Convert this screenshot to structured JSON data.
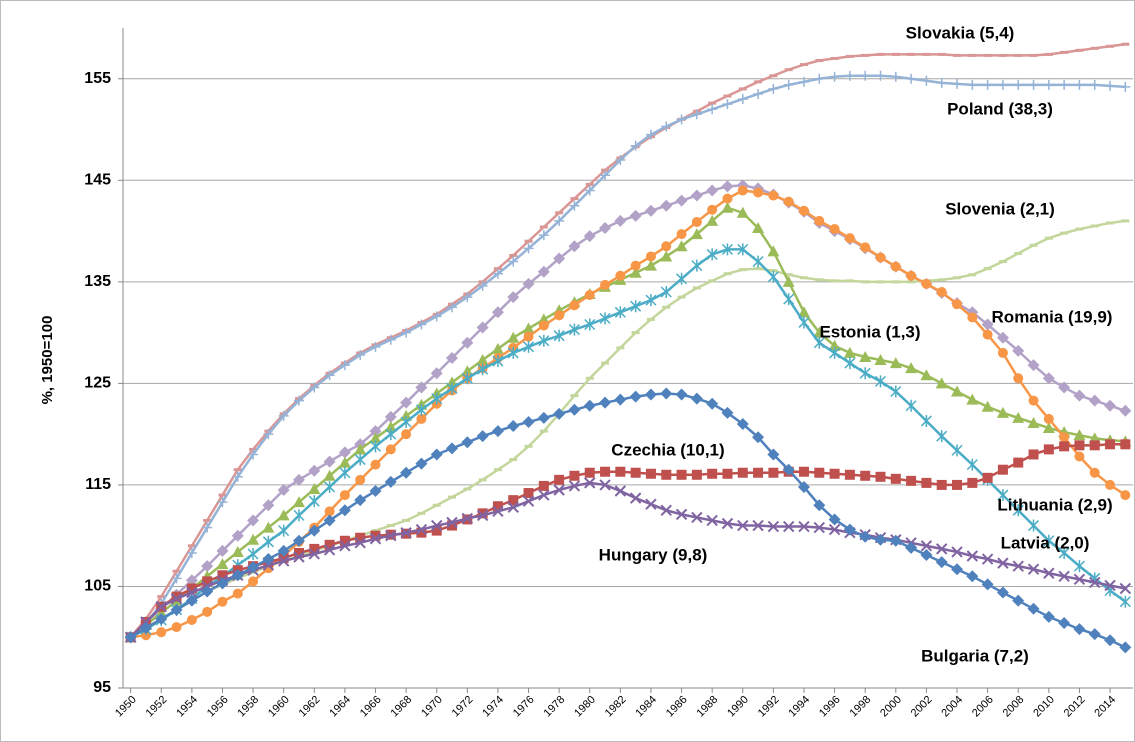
{
  "chart_data": {
    "type": "line",
    "y_label": "%, 1950=100",
    "x": [
      1950,
      1951,
      1952,
      1953,
      1954,
      1955,
      1956,
      1957,
      1958,
      1959,
      1960,
      1961,
      1962,
      1963,
      1964,
      1965,
      1966,
      1967,
      1968,
      1969,
      1970,
      1971,
      1972,
      1973,
      1974,
      1975,
      1976,
      1977,
      1978,
      1979,
      1980,
      1981,
      1982,
      1983,
      1984,
      1985,
      1986,
      1987,
      1988,
      1989,
      1990,
      1991,
      1992,
      1993,
      1994,
      1995,
      1996,
      1997,
      1998,
      1999,
      2000,
      2001,
      2002,
      2003,
      2004,
      2005,
      2006,
      2007,
      2008,
      2009,
      2010,
      2011,
      2012,
      2013,
      2014,
      2015
    ],
    "xlim": [
      1949.5,
      2015.5
    ],
    "xticks": [
      1950,
      1952,
      1954,
      1956,
      1958,
      1960,
      1962,
      1964,
      1966,
      1968,
      1970,
      1972,
      1974,
      1976,
      1978,
      1980,
      1982,
      1984,
      1986,
      1988,
      1990,
      1992,
      1994,
      1996,
      1998,
      2000,
      2002,
      2004,
      2006,
      2008,
      2010,
      2012,
      2014
    ],
    "ylim": [
      95,
      160
    ],
    "yticks": [
      95,
      105,
      115,
      125,
      135,
      145,
      155
    ],
    "grid": true,
    "series": [
      {
        "name": "Slovakia (5,4)",
        "color": "#d99694",
        "marker": "dash",
        "values": [
          100,
          101.8,
          104,
          106.5,
          109,
          111.5,
          114,
          116.5,
          118.5,
          120.3,
          122,
          123.5,
          124.8,
          126,
          127,
          128,
          128.8,
          129.5,
          130.2,
          131,
          131.8,
          132.8,
          133.8,
          135,
          136.3,
          137.6,
          139,
          140.4,
          141.8,
          143.2,
          144.6,
          146,
          147.2,
          148.3,
          149.3,
          150.2,
          151,
          151.8,
          152.6,
          153.3,
          154,
          154.7,
          155.3,
          155.9,
          156.4,
          156.8,
          157,
          157.2,
          157.3,
          157.4,
          157.4,
          157.4,
          157.4,
          157.4,
          157.3,
          157.3,
          157.3,
          157.3,
          157.3,
          157.3,
          157.4,
          157.6,
          157.8,
          158,
          158.2,
          158.4
        ]
      },
      {
        "name": "Poland (38,3)",
        "color": "#95b3d7",
        "marker": "plus",
        "values": [
          100,
          101.3,
          103.3,
          105.8,
          108.3,
          110.8,
          113.3,
          115.8,
          118,
          120,
          121.8,
          123.3,
          124.6,
          125.8,
          126.8,
          127.8,
          128.6,
          129.3,
          130,
          130.8,
          131.6,
          132.5,
          133.5,
          134.6,
          135.8,
          137,
          138.3,
          139.6,
          141,
          142.5,
          144,
          145.5,
          147,
          148.4,
          149.5,
          150.3,
          151,
          151.5,
          152,
          152.5,
          153,
          153.5,
          154,
          154.4,
          154.7,
          155,
          155.2,
          155.3,
          155.3,
          155.3,
          155.2,
          155,
          154.8,
          154.6,
          154.5,
          154.4,
          154.4,
          154.4,
          154.4,
          154.4,
          154.4,
          154.4,
          154.4,
          154.4,
          154.3,
          154.2
        ]
      },
      {
        "name": "Slovenia (2,1)",
        "color": "#c3d69b",
        "marker": "dash",
        "values": [
          100,
          100.9,
          101.8,
          102.7,
          103.6,
          104.5,
          105.2,
          105.8,
          106.4,
          107,
          107.5,
          108,
          108.5,
          109,
          109.5,
          110,
          110.5,
          111,
          111.5,
          112.2,
          113,
          113.8,
          114.6,
          115.5,
          116.5,
          117.5,
          118.8,
          120.3,
          122,
          123.8,
          125.5,
          127,
          128.5,
          130,
          131.3,
          132.5,
          133.5,
          134.4,
          135.1,
          135.8,
          136.2,
          136.3,
          136.1,
          135.7,
          135.4,
          135.2,
          135.1,
          135.1,
          135,
          135,
          135,
          135,
          135.1,
          135.2,
          135.4,
          135.7,
          136.3,
          137,
          137.8,
          138.6,
          139.3,
          139.8,
          140.2,
          140.5,
          140.8,
          141
        ]
      },
      {
        "name": "Romania (19,9)",
        "color": "#b3a2c7",
        "marker": "diamond",
        "values": [
          100,
          101.5,
          102.8,
          104.2,
          105.6,
          107,
          108.5,
          110,
          111.5,
          113,
          114.5,
          115.5,
          116.4,
          117.3,
          118.2,
          119,
          120.3,
          121.7,
          123.1,
          124.6,
          126,
          127.5,
          129,
          130.5,
          132,
          133.5,
          134.8,
          136,
          137.3,
          138.5,
          139.5,
          140.3,
          141,
          141.5,
          142,
          142.5,
          143,
          143.5,
          144,
          144.4,
          144.5,
          144.2,
          143.6,
          142.8,
          141.9,
          140.8,
          140,
          139.2,
          138.3,
          137.4,
          136.5,
          135.6,
          134.8,
          133.9,
          132.9,
          132,
          130.8,
          129.5,
          128.2,
          126.8,
          125.5,
          124.6,
          123.8,
          123.3,
          122.8,
          122.3
        ]
      },
      {
        "name": "Estonia (1,3)",
        "color": "#9bbb59",
        "marker": "triangle",
        "values": [
          100,
          101.2,
          102.4,
          103.6,
          104.8,
          106,
          107.2,
          108.4,
          109.6,
          110.8,
          112,
          113.3,
          114.6,
          115.9,
          117.2,
          118.5,
          119.6,
          120.7,
          121.8,
          122.9,
          124,
          125.1,
          126.2,
          127.3,
          128.4,
          129.5,
          130.4,
          131.3,
          132.2,
          133,
          133.8,
          134.5,
          135.2,
          135.9,
          136.6,
          137.5,
          138.5,
          139.7,
          141,
          142.3,
          141.8,
          140.3,
          138,
          135,
          132,
          130,
          128.7,
          128,
          127.6,
          127.3,
          127,
          126.5,
          125.8,
          125,
          124.2,
          123.4,
          122.7,
          122.1,
          121.6,
          121.1,
          120.6,
          120.2,
          119.9,
          119.6,
          119.4,
          119.3
        ]
      },
      {
        "name": "Lithuania (2,9)",
        "color": "#f79646",
        "marker": "circle",
        "values": [
          100,
          100.2,
          100.5,
          101,
          101.7,
          102.5,
          103.5,
          104.3,
          105.5,
          106.8,
          108,
          109.4,
          110.8,
          112.4,
          114,
          115.5,
          117,
          118.5,
          120,
          121.5,
          123,
          124.3,
          125.5,
          126.5,
          127.5,
          128.5,
          129.6,
          130.7,
          131.7,
          132.7,
          133.7,
          134.7,
          135.6,
          136.6,
          137.5,
          138.5,
          139.7,
          140.9,
          142.1,
          143.2,
          144,
          143.8,
          143.5,
          142.9,
          142,
          141,
          140.2,
          139.3,
          138.4,
          137.4,
          136.5,
          135.6,
          134.8,
          134,
          132.8,
          131.5,
          129.8,
          128,
          125.5,
          123.3,
          121.5,
          119.7,
          117.8,
          116.2,
          115,
          114
        ]
      },
      {
        "name": "Latvia (2,0)",
        "color": "#4bacc6",
        "marker": "star",
        "values": [
          100,
          100.8,
          101.7,
          102.7,
          103.8,
          105,
          106,
          107.1,
          108.2,
          109.4,
          110.5,
          112,
          113.4,
          114.8,
          116.2,
          117.5,
          118.8,
          120,
          121.2,
          122.4,
          123.5,
          124.5,
          125.5,
          126.4,
          127.2,
          128,
          128.6,
          129.2,
          129.7,
          130.3,
          130.8,
          131.4,
          132,
          132.6,
          133.2,
          134,
          135.3,
          136.6,
          137.7,
          138.2,
          138.2,
          137,
          135.5,
          133.3,
          131,
          129,
          128,
          127,
          126,
          125.2,
          124.2,
          122.8,
          121.3,
          119.8,
          118.4,
          117,
          115.5,
          114,
          112.5,
          111,
          109.5,
          108.3,
          107,
          105.8,
          104.6,
          103.5
        ]
      },
      {
        "name": "Czechia (10,1)",
        "color": "#c0504d",
        "marker": "square",
        "values": [
          100,
          101.5,
          103,
          104,
          104.8,
          105.5,
          106.1,
          106.6,
          107,
          107.4,
          107.8,
          108.3,
          108.7,
          109.1,
          109.5,
          109.8,
          110,
          110.1,
          110.2,
          110.3,
          110.5,
          111,
          111.6,
          112.2,
          112.9,
          113.5,
          114.2,
          114.9,
          115.5,
          115.9,
          116.2,
          116.3,
          116.3,
          116.2,
          116.1,
          116,
          116,
          116,
          116.1,
          116.1,
          116.2,
          116.2,
          116.2,
          116.3,
          116.3,
          116.2,
          116.1,
          116,
          115.9,
          115.8,
          115.6,
          115.4,
          115.2,
          115,
          115,
          115.2,
          115.7,
          116.5,
          117.2,
          118,
          118.5,
          118.8,
          118.9,
          118.9,
          119,
          119
        ]
      },
      {
        "name": "Hungary (9,8)",
        "color": "#8064a2",
        "marker": "x",
        "values": [
          100,
          101.5,
          103,
          103.8,
          104.4,
          105,
          105.6,
          106.1,
          106.6,
          107.1,
          107.5,
          107.9,
          108.2,
          108.6,
          109,
          109.3,
          109.7,
          110,
          110.3,
          110.6,
          111,
          111.3,
          111.7,
          112,
          112.4,
          112.8,
          113.4,
          114,
          114.5,
          114.9,
          115.2,
          115,
          114.4,
          113.7,
          113.1,
          112.5,
          112.1,
          111.8,
          111.5,
          111.2,
          111,
          111,
          110.9,
          110.9,
          110.9,
          110.8,
          110.6,
          110.3,
          110.1,
          109.8,
          109.6,
          109.3,
          109,
          108.7,
          108.4,
          108,
          107.7,
          107.3,
          107,
          106.7,
          106.3,
          106,
          105.7,
          105.4,
          105.1,
          104.8
        ]
      },
      {
        "name": "Bulgaria (7,2)",
        "color": "#4f81bd",
        "marker": "diamond",
        "values": [
          100,
          100.9,
          101.8,
          102.7,
          103.6,
          104.5,
          105.3,
          106.1,
          106.9,
          107.7,
          108.5,
          109.5,
          110.5,
          111.5,
          112.5,
          113.5,
          114.4,
          115.3,
          116.2,
          117.1,
          118,
          118.6,
          119.2,
          119.8,
          120.3,
          120.8,
          121.2,
          121.6,
          122,
          122.4,
          122.8,
          123.1,
          123.4,
          123.7,
          123.9,
          124,
          123.9,
          123.5,
          123,
          122.1,
          121,
          119.7,
          118,
          116.5,
          114.8,
          113,
          111.6,
          110.6,
          109.9,
          109.6,
          109.5,
          108.8,
          108.1,
          107.4,
          106.7,
          106,
          105.2,
          104.4,
          103.6,
          102.8,
          102,
          101.4,
          100.8,
          100.3,
          99.7,
          99
        ]
      }
    ]
  }
}
